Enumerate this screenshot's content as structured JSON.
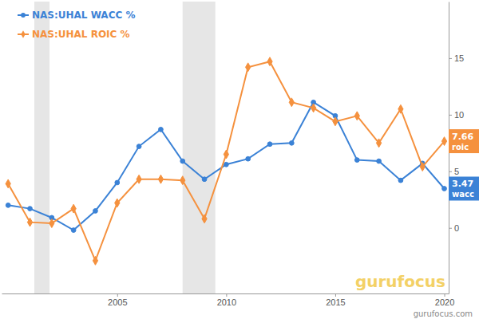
{
  "chart_data": {
    "type": "line",
    "x": [
      2000,
      2001,
      2002,
      2003,
      2004,
      2005,
      2006,
      2007,
      2008,
      2009,
      2010,
      2011,
      2012,
      2013,
      2014,
      2015,
      2016,
      2017,
      2018,
      2019,
      2020
    ],
    "series": [
      {
        "name": "NAS:UHAL WACC %",
        "color": "#3b82d6",
        "marker": "circle",
        "values": [
          2.0,
          1.7,
          0.9,
          -0.2,
          1.5,
          4.0,
          7.2,
          8.7,
          5.9,
          4.3,
          5.6,
          6.1,
          7.4,
          7.5,
          11.1,
          9.9,
          6.0,
          5.9,
          4.2,
          5.7,
          3.47
        ]
      },
      {
        "name": "NAS:UHAL ROIC %",
        "color": "#f5913e",
        "marker": "diamond",
        "values": [
          3.9,
          0.5,
          0.4,
          1.7,
          -2.9,
          2.2,
          4.3,
          4.3,
          4.2,
          0.8,
          6.5,
          14.2,
          14.7,
          11.1,
          10.6,
          9.4,
          9.9,
          7.5,
          10.5,
          5.4,
          7.66
        ]
      }
    ],
    "xlim": [
      1999.7,
      2020.2
    ],
    "xticks": [
      2005,
      2010,
      2015,
      2020
    ],
    "ylim": [
      -5.8,
      20
    ],
    "yticks": [
      0,
      5,
      10,
      15
    ],
    "grid": false,
    "legend": "upper left",
    "shaded_ranges": [
      [
        2001.2,
        2001.9
      ],
      [
        2008.0,
        2009.5
      ]
    ],
    "annotations": [
      {
        "value": 7.66,
        "text": "roic",
        "color": "#f5913e"
      },
      {
        "value": 3.47,
        "text": "wacc",
        "color": "#3b82d6"
      }
    ],
    "watermark": "gurufocus",
    "source": "gurufocus.com"
  }
}
